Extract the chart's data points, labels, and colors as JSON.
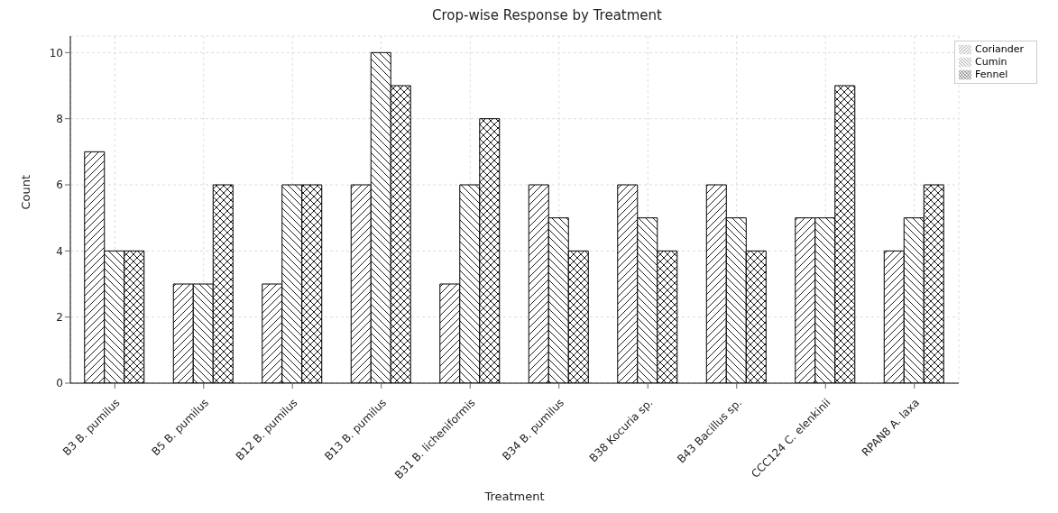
{
  "chart_data": {
    "type": "bar",
    "title": "Crop-wise Response by Treatment",
    "xlabel": "Treatment",
    "ylabel": "Count",
    "categories": [
      "B3 B. pumilus",
      "B5 B. pumilus",
      "B12 B. pumilus",
      "B13 B. pumilus",
      "B31 B. licheniformis",
      "B34 B. pumilus",
      "B38 Kocuria sp.",
      "B43 Bacillus sp.",
      "CCC124 C. elenkinii",
      "RPAN8 A. laxa"
    ],
    "series": [
      {
        "name": "Coriander",
        "color": "#000000",
        "values": [
          7,
          3,
          3,
          6,
          3,
          6,
          6,
          6,
          5,
          4
        ]
      },
      {
        "name": "Cumin",
        "color": "#000000",
        "values": [
          4,
          3,
          6,
          10,
          6,
          5,
          5,
          5,
          5,
          5
        ]
      },
      {
        "name": "Fennel",
        "color": "#000000",
        "values": [
          4,
          6,
          6,
          9,
          8,
          4,
          4,
          4,
          9,
          6
        ]
      }
    ],
    "ylim": [
      0,
      10.5
    ],
    "yticks": [
      0,
      2,
      4,
      6,
      8,
      10
    ],
    "grid": true,
    "legend": "top right"
  }
}
